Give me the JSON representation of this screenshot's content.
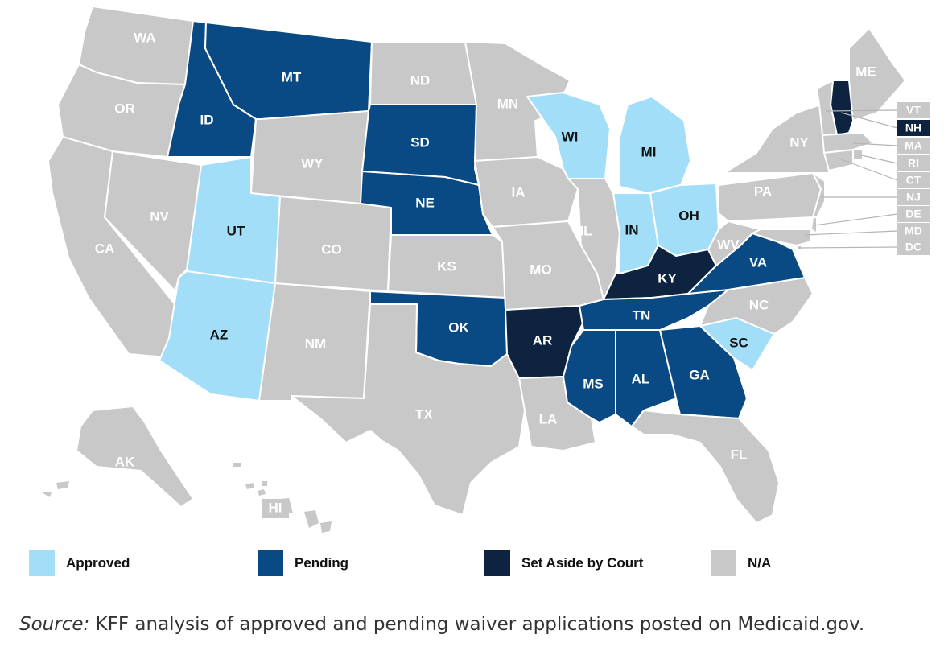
{
  "colors": {
    "Approved": "#a3def8",
    "Pending": "#0a4a84",
    "Set Aside by Court": "#0e2340",
    "N/A": "#c8c8c8"
  },
  "label_colors": {
    "Approved": "#111111",
    "Pending": "#ffffff",
    "Set Aside by Court": "#ffffff",
    "N/A": "#ffffff"
  },
  "states": {
    "WA": "N/A",
    "OR": "N/A",
    "CA": "N/A",
    "NV": "N/A",
    "ID": "Pending",
    "MT": "Pending",
    "WY": "N/A",
    "UT": "Approved",
    "AZ": "Approved",
    "CO": "N/A",
    "NM": "N/A",
    "ND": "N/A",
    "SD": "Pending",
    "NE": "Pending",
    "KS": "N/A",
    "OK": "Pending",
    "TX": "N/A",
    "MN": "N/A",
    "IA": "N/A",
    "MO": "N/A",
    "AR": "Set Aside by Court",
    "LA": "N/A",
    "WI": "Approved",
    "IL": "N/A",
    "MI": "Approved",
    "IN": "Approved",
    "OH": "Approved",
    "KY": "Set Aside by Court",
    "TN": "Pending",
    "MS": "Pending",
    "AL": "Pending",
    "GA": "Pending",
    "FL": "N/A",
    "SC": "Approved",
    "NC": "N/A",
    "VA": "Pending",
    "WV": "N/A",
    "PA": "N/A",
    "NY": "N/A",
    "ME": "N/A",
    "NH": "Set Aside by Court",
    "VT": "N/A",
    "MA": "N/A",
    "RI": "N/A",
    "CT": "N/A",
    "NJ": "N/A",
    "DE": "N/A",
    "MD": "N/A",
    "DC": "N/A",
    "AK": "N/A",
    "HI": "N/A"
  },
  "callout_states": [
    "VT",
    "NH",
    "MA",
    "RI",
    "CT",
    "NJ",
    "DE",
    "MD",
    "DC"
  ],
  "legend": [
    {
      "label": "Approved",
      "category": "Approved"
    },
    {
      "label": "Pending",
      "category": "Pending"
    },
    {
      "label": "Set Aside by Court",
      "category": "Set Aside by Court"
    },
    {
      "label": "N/A",
      "category": "N/A"
    }
  ],
  "source": {
    "prefix": "Source:",
    "text": " KFF analysis of approved and pending waiver applications posted on Medicaid.gov."
  }
}
